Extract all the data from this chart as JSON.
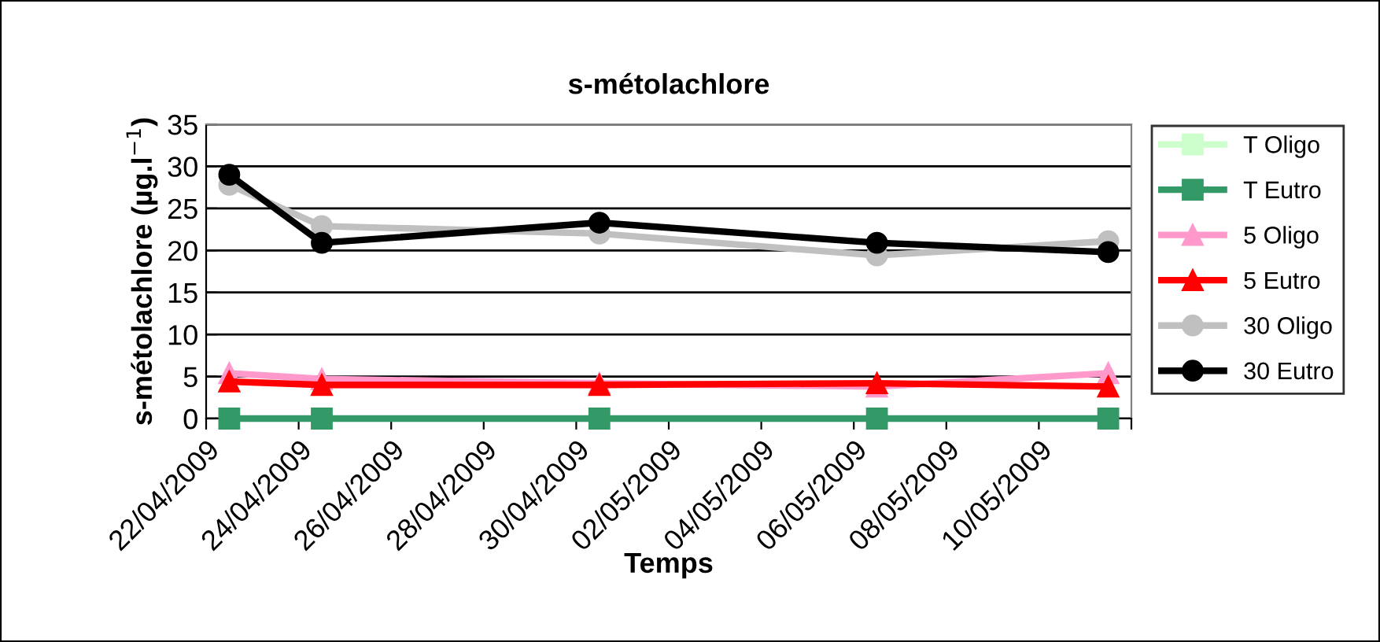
{
  "chart_data": {
    "type": "line",
    "title": "s-métolachlore",
    "xlabel": "Temps",
    "ylabel": "s-métolachlore (µg.l$^{−1}$)",
    "x": [
      "2009-04-22T12:00",
      "2009-04-24T12:00",
      "2009-04-30T12:00",
      "2009-05-06T12:00",
      "2009-05-11T12:00"
    ],
    "xlim": [
      "2009-04-22",
      "2009-05-12"
    ],
    "xticks": [
      {
        "value": "2009-04-22",
        "label": "22/04/2009"
      },
      {
        "value": "2009-04-24",
        "label": "24/04/2009"
      },
      {
        "value": "2009-04-26",
        "label": "26/04/2009"
      },
      {
        "value": "2009-04-28",
        "label": "28/04/2009"
      },
      {
        "value": "2009-04-30",
        "label": "30/04/2009"
      },
      {
        "value": "2009-05-02",
        "label": "02/05/2009"
      },
      {
        "value": "2009-05-04",
        "label": "04/05/2009"
      },
      {
        "value": "2009-05-06",
        "label": "06/05/2009"
      },
      {
        "value": "2009-05-08",
        "label": "08/05/2009"
      },
      {
        "value": "2009-05-10",
        "label": "10/05/2009"
      },
      {
        "value": "2009-05-12",
        "label": null
      }
    ],
    "ylim": [
      0,
      35
    ],
    "yticks": [
      0,
      5,
      10,
      15,
      20,
      25,
      30,
      35
    ],
    "grid": "y",
    "legend": "right",
    "line_style": "solid",
    "series": [
      {
        "name": "T Oligo",
        "color": "#ccffcc",
        "marker": "square",
        "values": [
          null,
          null,
          null,
          null,
          null
        ]
      },
      {
        "name": "T Eutro",
        "color": "#339966",
        "marker": "square",
        "values": [
          0,
          0,
          0,
          0,
          0
        ]
      },
      {
        "name": "5 Oligo",
        "color": "#ff99cc",
        "marker": "triangle",
        "values": [
          5.4,
          4.7,
          4.2,
          3.8,
          5.4
        ]
      },
      {
        "name": "5 Eutro",
        "color": "#ff0000",
        "marker": "triangle",
        "values": [
          4.4,
          4.0,
          4.0,
          4.2,
          3.8
        ]
      },
      {
        "name": "30 Oligo",
        "color": "#c0c0c0",
        "marker": "circle",
        "values": [
          27.8,
          22.9,
          22.0,
          19.4,
          21.1
        ]
      },
      {
        "name": "30 Eutro",
        "color": "#000000",
        "marker": "circle",
        "values": [
          29.0,
          20.9,
          23.3,
          20.9,
          19.8
        ]
      }
    ]
  }
}
